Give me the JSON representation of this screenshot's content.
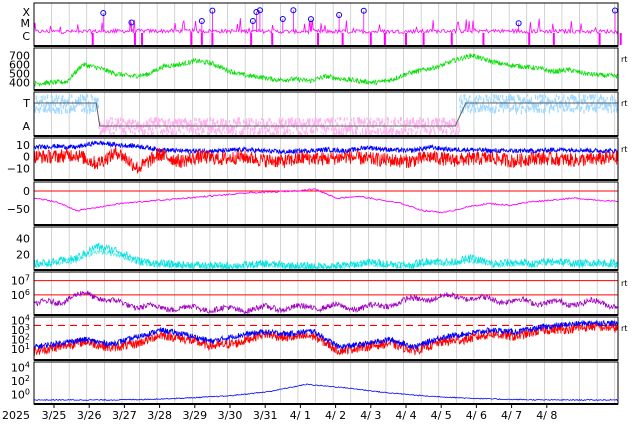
{
  "chart_data": {
    "type": "line",
    "x_axis": {
      "year_label": "2025",
      "tick_labels": [
        "3/25",
        "3/26",
        "3/27",
        "3/28",
        "3/29",
        "3/30",
        "3/31",
        "4/ 1",
        "4/ 2",
        "4/ 3",
        "4/ 4",
        "4/ 5",
        "4/ 6",
        "4/ 7",
        "4/ 8"
      ],
      "grid": true
    },
    "colors": {
      "magenta": "#ff00ff",
      "green": "#00e000",
      "lightblue": "#a0d8ff",
      "pink": "#ffb0f0",
      "blue": "#0000ff",
      "red": "#ff0000",
      "purple": "#c000c0",
      "violet": "#a000c0",
      "cyan": "#00e0e0",
      "gray_line": "#606060",
      "panel_border": "#000000",
      "grid": "#c0c0c0"
    },
    "panels": [
      {
        "id": "flare-classes",
        "y_labels": [
          "X",
          "M",
          "C"
        ],
        "right_marker": "",
        "series": [
          {
            "color": "magenta",
            "style": "line",
            "range": [
              0,
              1
            ],
            "approx": [
              0.15,
              0.15,
              0.18,
              0.2,
              0.2,
              0.18,
              0.15,
              0.15,
              0.15,
              0.16,
              0.2,
              0.2,
              0.18,
              0.16,
              0.15
            ]
          }
        ],
        "circles_at_day": [
          1.4,
          2.2,
          4.2,
          4.5,
          5.65,
          5.75,
          5.85,
          6.5,
          6.8,
          7.3,
          8.1,
          8.8,
          13.2,
          16.8
        ],
        "bars_at_day": [
          1.1,
          2.3,
          2.5,
          3.9,
          4.2,
          4.5,
          5.6,
          6.2,
          7.5,
          8.2,
          9.0,
          9.4,
          10.0,
          10.5,
          11.3,
          12.2,
          13.5,
          14.2,
          15.5,
          16.1
        ]
      },
      {
        "id": "solar-wind-speed",
        "tick_labels": [
          "700",
          "600",
          "500",
          "400"
        ],
        "tick_values": [
          700,
          600,
          500,
          400
        ],
        "range": [
          320,
          780
        ],
        "right_marker": "rt",
        "series": [
          {
            "color": "green",
            "approx": [
              390,
              400,
              410,
              600,
              560,
              500,
              470,
              490,
              580,
              600,
              640,
              610,
              530,
              480,
              460,
              430,
              440,
              420,
              470,
              440,
              420,
              400,
              430,
              500,
              540,
              580,
              650,
              700,
              640,
              600,
              580,
              560,
              520,
              540,
              500,
              480,
              470
            ]
          }
        ]
      },
      {
        "id": "bz-orientation",
        "tick_labels": [
          "T",
          "A"
        ],
        "right_marker": "rt",
        "series": [
          {
            "color": "lightblue",
            "style": "dots",
            "level": "T"
          },
          {
            "color": "pink",
            "style": "dots",
            "level": "A"
          },
          {
            "color": "gray_line",
            "style": "step",
            "segments": [
              [
                "T",
                0.0,
                1.2
              ],
              [
                "A",
                1.3,
                11.4
              ],
              [
                "T",
                11.7,
                17.0
              ]
            ]
          }
        ]
      },
      {
        "id": "magnetic-field",
        "tick_labels": [
          "10",
          "0",
          "−10"
        ],
        "tick_values": [
          10,
          0,
          -10
        ],
        "range": [
          -20,
          16
        ],
        "right_marker": "rt",
        "series": [
          {
            "color": "blue",
            "approx": [
              8,
              9,
              8,
              12,
              10,
              9,
              6,
              5,
              5,
              5,
              6,
              5,
              4,
              5,
              6,
              5,
              8,
              6,
              5,
              8,
              6,
              6,
              5,
              5,
              5,
              6,
              6,
              5,
              5
            ]
          },
          {
            "color": "red",
            "approx": [
              0,
              0,
              2,
              -6,
              4,
              -10,
              2,
              -4,
              0,
              -2,
              0,
              -3,
              -4,
              -1,
              -2,
              0,
              -2,
              -3,
              -4,
              0,
              -3,
              -2,
              -1,
              -4,
              -1,
              -2,
              -3,
              -2,
              -1
            ]
          }
        ]
      },
      {
        "id": "dst-index",
        "tick_labels": [
          "0",
          "−50"
        ],
        "tick_values": [
          0,
          -50
        ],
        "range": [
          -95,
          25
        ],
        "right_marker": "",
        "series": [
          {
            "color": "red",
            "style": "hline",
            "value": 0
          },
          {
            "color": "magenta",
            "approx": [
              -20,
              -30,
              -55,
              -45,
              -35,
              -30,
              -25,
              -20,
              -15,
              -10,
              -5,
              -3,
              0,
              5,
              -20,
              -15,
              -25,
              -35,
              -55,
              -60,
              -45,
              -35,
              -40,
              -30,
              -25,
              -20,
              -25,
              -30
            ]
          }
        ]
      },
      {
        "id": "proton-density",
        "tick_labels": [
          "40",
          "20"
        ],
        "tick_values": [
          40,
          20
        ],
        "range": [
          0,
          55
        ],
        "right_marker": "",
        "series": [
          {
            "color": "cyan",
            "approx": [
              8,
              10,
              15,
              30,
              25,
              12,
              8,
              7,
              6,
              5,
              6,
              8,
              6,
              5,
              5,
              6,
              10,
              8,
              6,
              12,
              10,
              15,
              8,
              10,
              8,
              12,
              8,
              10,
              8
            ]
          }
        ]
      },
      {
        "id": "electron-flux",
        "tick_labels": [
          "10^7",
          "10^6"
        ],
        "tick_exponents": [
          7,
          6
        ],
        "log_range": [
          4.6,
          7.6
        ],
        "right_marker": "rt",
        "series": [
          {
            "color": "red",
            "style": "hline",
            "exponent": 7
          },
          {
            "color": "red",
            "style": "hline",
            "exponent": 6
          },
          {
            "color": "violet",
            "approx": [
              5.3,
              5.6,
              6.1,
              5.5,
              5.2,
              5.1,
              5.1,
              5.0,
              5.0,
              5.1,
              5.1,
              5.2,
              5.1,
              5.2,
              5.6,
              5.8,
              5.9,
              5.7,
              5.6,
              5.5,
              5.4,
              5.5,
              5.3
            ]
          }
        ]
      },
      {
        "id": "proton-flux",
        "tick_labels": [
          "10^4",
          "10^3",
          "10^2",
          "10^1"
        ],
        "tick_exponents": [
          4,
          3,
          2,
          1
        ],
        "log_range": [
          -0.2,
          4.4
        ],
        "right_marker": "rt",
        "series": [
          {
            "color": "red",
            "style": "dashed-hline",
            "exponent": 3.5
          },
          {
            "color": "blue",
            "approx": [
              1.2,
              1.6,
              2.0,
              1.5,
              2.2,
              3.0,
              2.5,
              1.8,
              2.4,
              2.8,
              2.6,
              2.9,
              1.2,
              1.5,
              2.0,
              1.2,
              2.2,
              2.6,
              3.0,
              2.8,
              3.3,
              3.6,
              3.8,
              3.7
            ]
          },
          {
            "color": "red",
            "approx": [
              0.7,
              1.2,
              1.8,
              1.1,
              1.5,
              2.5,
              2.0,
              1.3,
              1.6,
              2.6,
              2.2,
              2.4,
              0.8,
              1.2,
              1.6,
              0.8,
              1.7,
              2.0,
              2.6,
              2.3,
              3.0,
              3.1,
              3.4,
              3.2
            ]
          }
        ]
      },
      {
        "id": "high-energy-protons",
        "tick_labels": [
          "10^4",
          "10^2",
          "10^0"
        ],
        "tick_exponents": [
          4,
          2,
          0
        ],
        "log_range": [
          -1.4,
          4.8
        ],
        "right_marker": "",
        "series": [
          {
            "color": "blue",
            "approx": [
              -0.8,
              -0.8,
              -0.8,
              -0.7,
              -0.5,
              -0.2,
              0.4,
              1.5,
              1.0,
              0.3,
              -0.2,
              -0.5,
              -0.7,
              -0.8,
              -0.8,
              -0.8
            ]
          }
        ]
      }
    ]
  }
}
